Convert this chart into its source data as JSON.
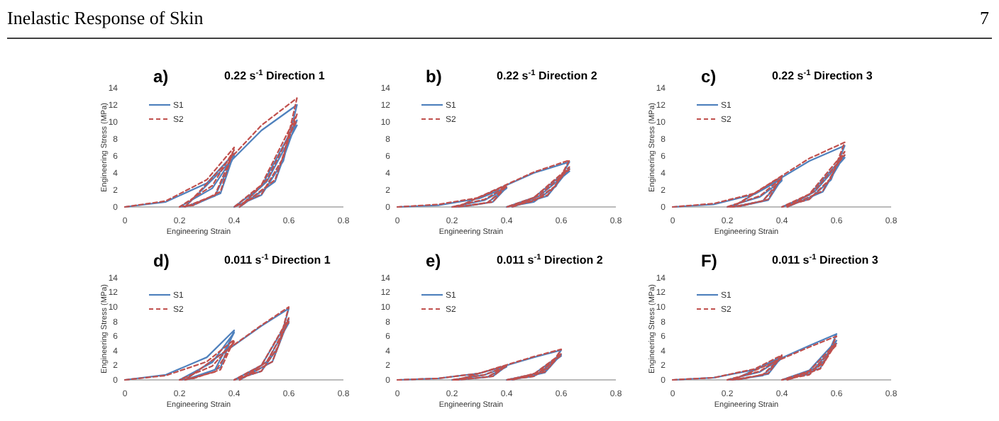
{
  "chart_data": [
    {
      "type": "line",
      "title": "0.22 s$^{-1}$ Direction 1",
      "xlabel": "Engineering Strain",
      "ylabel": "Engineering Stress (MPa)",
      "annotations": [
        "Inelastic Response of Skin",
        "7",
        "a)"
      ],
      "legend": "top left",
      "xlim": [
        0,
        0.8
      ],
      "xticks": [
        0,
        0.2,
        0.4,
        0.6,
        0.8
      ],
      "ylim": [
        0,
        14
      ],
      "yticks": [
        0,
        2,
        4,
        6,
        8,
        10,
        12,
        14
      ],
      "x": [
        0,
        0.15,
        0.3,
        0.4,
        0.35,
        0.25,
        0.2,
        0.32,
        0.4,
        0.33,
        0.22,
        0.5,
        0.63,
        0.58,
        0.5,
        0.4,
        0.5,
        0.63,
        0.55,
        0.42,
        0.52,
        0.63
      ],
      "series": [
        {
          "name": "S1",
          "color": "#4f81bd",
          "line_style": "solid",
          "values": [
            0,
            0.6,
            2.8,
            6.3,
            1.6,
            0.2,
            0,
            2.2,
            6.0,
            1.3,
            0,
            9,
            12,
            5.4,
            1.4,
            0,
            2.4,
            10.2,
            3,
            0,
            3,
            9.6
          ]
        },
        {
          "name": "S2",
          "color": "#c0504d",
          "line_style": "dashed",
          "values": [
            0,
            0.7,
            3.2,
            7,
            1.8,
            0.2,
            0,
            2.5,
            6.7,
            1.4,
            0,
            9.6,
            12.8,
            5.8,
            1.5,
            0,
            2.6,
            10.9,
            3.2,
            0,
            3.2,
            10.2
          ]
        }
      ]
    },
    {
      "type": "line",
      "title": "0.22 s$^{-1}$ Direction 2",
      "xlabel": "Engineering Strain",
      "annotations": [
        "b)"
      ],
      "legend": "top left",
      "xlim": [
        0,
        0.8
      ],
      "xticks": [
        0,
        0.2,
        0.4,
        0.6,
        0.8
      ],
      "ylim": [
        0,
        14
      ],
      "yticks": [
        0,
        2,
        4,
        6,
        8,
        10,
        12,
        14
      ],
      "x": [
        0,
        0.15,
        0.3,
        0.4,
        0.35,
        0.25,
        0.2,
        0.32,
        0.4,
        0.33,
        0.22,
        0.5,
        0.63,
        0.58,
        0.5,
        0.4,
        0.5,
        0.63,
        0.55,
        0.42,
        0.52,
        0.63
      ],
      "series": [
        {
          "name": "S1",
          "color": "#4f81bd",
          "line_style": "solid",
          "values": [
            0,
            0.2,
            1,
            2.3,
            0.6,
            0.1,
            0,
            0.8,
            2.2,
            0.5,
            0,
            4,
            5.3,
            2.4,
            0.6,
            0,
            1.1,
            4.5,
            1.3,
            0,
            1.3,
            4.2
          ]
        },
        {
          "name": "S2",
          "color": "#c0504d",
          "line_style": "dashed",
          "values": [
            0,
            0.3,
            1.1,
            2.5,
            0.6,
            0.1,
            0,
            0.9,
            2.4,
            0.5,
            0,
            4.1,
            5.5,
            2.5,
            0.7,
            0,
            1.1,
            4.7,
            1.4,
            0,
            1.4,
            4.4
          ]
        }
      ]
    },
    {
      "type": "line",
      "title": "0.22 s$^{-1}$ Direction 3",
      "xlabel": "Engineering Strain",
      "ylabel": "Engineering Stress (MPa)",
      "annotations": [
        "c)"
      ],
      "legend": "top left",
      "xlim": [
        0,
        0.8
      ],
      "xticks": [
        0,
        0.2,
        0.4,
        0.6,
        0.8
      ],
      "ylim": [
        0,
        14
      ],
      "yticks": [
        0,
        2,
        4,
        6,
        8,
        10,
        12,
        14
      ],
      "x": [
        0,
        0.15,
        0.3,
        0.4,
        0.35,
        0.25,
        0.2,
        0.32,
        0.4,
        0.33,
        0.22,
        0.5,
        0.63,
        0.58,
        0.5,
        0.4,
        0.5,
        0.63,
        0.55,
        0.42,
        0.52,
        0.63
      ],
      "series": [
        {
          "name": "S1",
          "color": "#4f81bd",
          "line_style": "solid",
          "values": [
            0,
            0.3,
            1.5,
            3.3,
            0.8,
            0.1,
            0,
            1.2,
            3.1,
            0.7,
            0,
            5.4,
            7.2,
            3.2,
            0.9,
            0,
            1.4,
            6.1,
            1.8,
            0,
            1.8,
            5.8
          ]
        },
        {
          "name": "S2",
          "color": "#c0504d",
          "line_style": "dashed",
          "values": [
            0,
            0.4,
            1.6,
            3.6,
            0.9,
            0.1,
            0,
            1.3,
            3.4,
            0.7,
            0,
            5.7,
            7.6,
            3.4,
            0.9,
            0,
            1.5,
            6.5,
            1.9,
            0,
            1.9,
            6.1
          ]
        }
      ]
    },
    {
      "type": "line",
      "title": "0.011 s$^{-1}$ Direction 1",
      "xlabel": "Engineering Strain",
      "ylabel": "Engineering Stress (MPa)",
      "annotations": [
        "d)"
      ],
      "legend": "top left",
      "xlim": [
        0,
        0.8
      ],
      "xticks": [
        0,
        0.2,
        0.4,
        0.6,
        0.8
      ],
      "ylim": [
        0,
        14
      ],
      "yticks": [
        0,
        2,
        4,
        6,
        8,
        10,
        12,
        14
      ],
      "x": [
        0,
        0.15,
        0.3,
        0.4,
        0.35,
        0.25,
        0.2,
        0.32,
        0.4,
        0.33,
        0.22,
        0.5,
        0.6,
        0.56,
        0.5,
        0.4,
        0.5,
        0.6,
        0.54,
        0.42,
        0.52,
        0.6
      ],
      "series": [
        {
          "name": "S1",
          "color": "#4f81bd",
          "line_style": "solid",
          "values": [
            0,
            0.7,
            3.1,
            6.8,
            1.7,
            0.2,
            0,
            2.4,
            6.5,
            1.4,
            0,
            7.4,
            9.8,
            4.4,
            1.2,
            0,
            2,
            8.3,
            2.5,
            0,
            2.5,
            7.8
          ]
        },
        {
          "name": "S2",
          "color": "#c0504d",
          "line_style": "dashed",
          "values": [
            0,
            0.6,
            2.5,
            5.5,
            1.4,
            0.2,
            0,
            1.9,
            5.2,
            1.1,
            0,
            7.5,
            10,
            4.5,
            1.2,
            0,
            2,
            8.5,
            2.5,
            0,
            2.5,
            8
          ]
        }
      ]
    },
    {
      "type": "line",
      "title": "0.011 s$^{-1}$ Direction 2",
      "xlabel": "Engineering Strain",
      "annotations": [
        "e)"
      ],
      "legend": "top left",
      "xlim": [
        0,
        0.8
      ],
      "xticks": [
        0,
        0.2,
        0.4,
        0.6,
        0.8
      ],
      "ylim": [
        0,
        14
      ],
      "yticks": [
        0,
        2,
        4,
        6,
        8,
        10,
        12,
        14
      ],
      "x": [
        0,
        0.15,
        0.3,
        0.4,
        0.35,
        0.25,
        0.2,
        0.32,
        0.4,
        0.33,
        0.22,
        0.5,
        0.6,
        0.56,
        0.5,
        0.4,
        0.5,
        0.6,
        0.54,
        0.42,
        0.52,
        0.6
      ],
      "series": [
        {
          "name": "S1",
          "color": "#4f81bd",
          "line_style": "solid",
          "values": [
            0,
            0.2,
            0.9,
            1.9,
            0.5,
            0.1,
            0,
            0.7,
            1.8,
            0.4,
            0,
            3.1,
            4.1,
            1.8,
            0.5,
            0,
            0.8,
            3.5,
            1,
            0,
            1,
            3.3
          ]
        },
        {
          "name": "S2",
          "color": "#c0504d",
          "line_style": "dashed",
          "values": [
            0,
            0.2,
            0.9,
            2,
            0.5,
            0.1,
            0,
            0.7,
            1.9,
            0.4,
            0,
            3.2,
            4.2,
            1.9,
            0.5,
            0,
            0.8,
            3.6,
            1.1,
            0,
            1.1,
            3.4
          ]
        }
      ]
    },
    {
      "type": "line",
      "title": "0.011 s$^{-1}$ Direction 3",
      "xlabel": "Engineering Strain",
      "ylabel": "Engineering Stress (MPa)",
      "annotations": [
        "F)"
      ],
      "legend": "top left",
      "xlim": [
        0,
        0.8
      ],
      "xticks": [
        0,
        0.2,
        0.4,
        0.6,
        0.8
      ],
      "ylim": [
        0,
        14
      ],
      "yticks": [
        0,
        2,
        4,
        6,
        8,
        10,
        12,
        14
      ],
      "x": [
        0,
        0.15,
        0.3,
        0.4,
        0.35,
        0.25,
        0.2,
        0.32,
        0.4,
        0.33,
        0.22,
        0.5,
        0.6,
        0.56,
        0.5,
        0.4,
        0.5,
        0.6,
        0.54,
        0.42,
        0.52,
        0.6
      ],
      "series": [
        {
          "name": "S1",
          "color": "#4f81bd",
          "line_style": "solid",
          "values": [
            0,
            0.3,
            1.4,
            3.2,
            0.8,
            0.1,
            0,
            1.1,
            3,
            0.6,
            0,
            4.7,
            6.3,
            2.8,
            0.8,
            0,
            1.3,
            5.4,
            1.6,
            0,
            1.6,
            5
          ]
        },
        {
          "name": "S2",
          "color": "#c0504d",
          "line_style": "dashed",
          "values": [
            0,
            0.3,
            1.5,
            3.4,
            0.9,
            0.1,
            0,
            1.2,
            3.2,
            0.7,
            0,
            4.5,
            6,
            2.7,
            0.7,
            0,
            1.2,
            5.1,
            1.5,
            0,
            1.5,
            4.8
          ]
        }
      ]
    }
  ]
}
